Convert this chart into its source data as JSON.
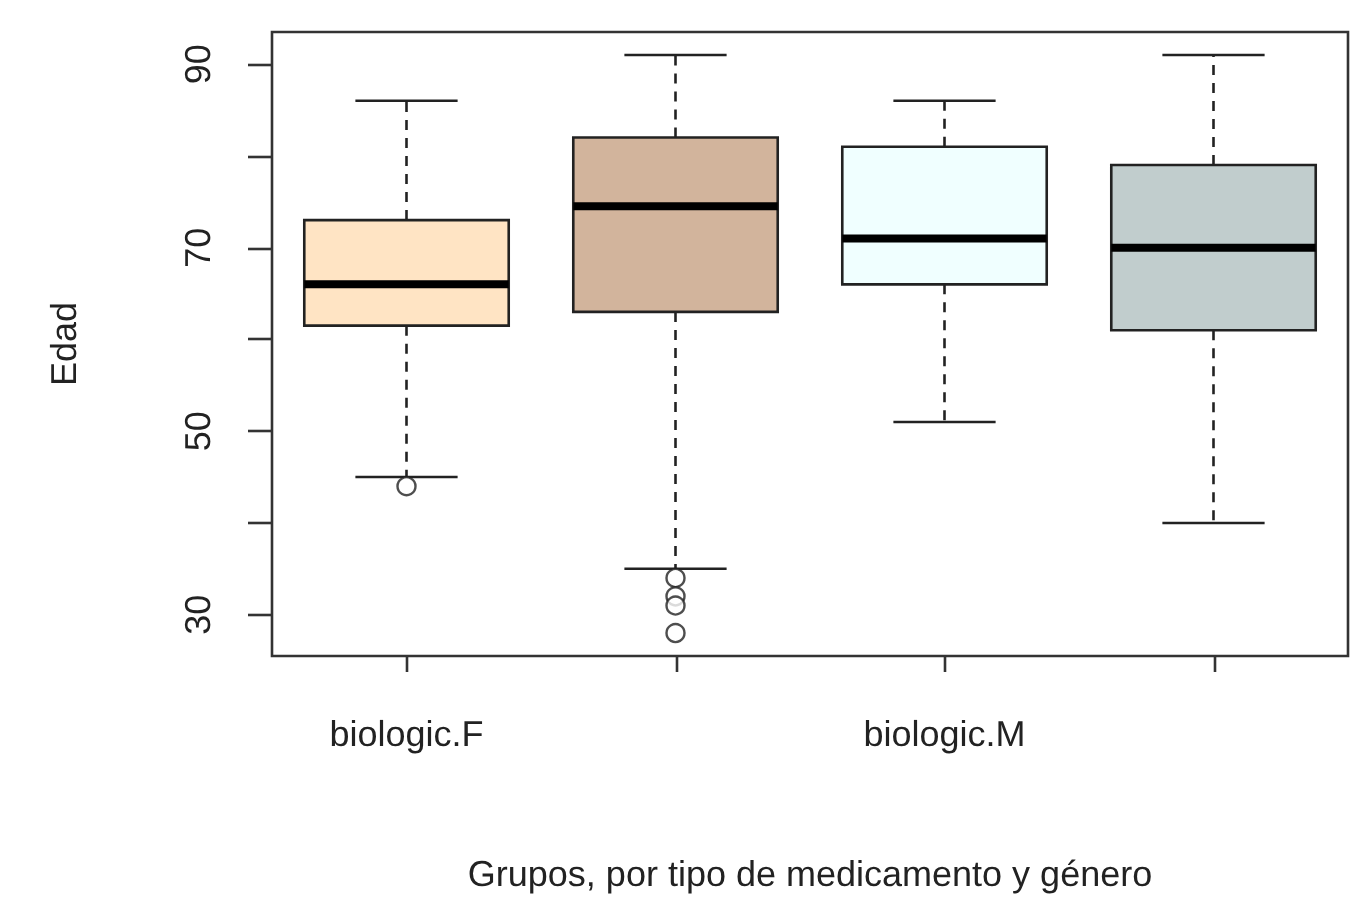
{
  "chart_data": {
    "type": "box",
    "xlabel": "Grupos, por tipo de medicamento y género",
    "ylabel": "Edad",
    "categories": [
      "biologic.F",
      null,
      "biologic.M",
      null
    ],
    "colors": [
      "#ffe4c4",
      "#d2b49c",
      "#f0ffff",
      "#c1cdcd"
    ],
    "boxes": [
      {
        "low": 45,
        "q1": 61.5,
        "median": 66,
        "q3": 73,
        "high": 86,
        "outliers": [
          44
        ]
      },
      {
        "low": 35,
        "q1": 63,
        "median": 74.5,
        "q3": 82,
        "high": 91,
        "outliers": [
          34,
          32,
          31,
          28
        ]
      },
      {
        "low": 51,
        "q1": 66,
        "median": 71,
        "q3": 81,
        "high": 86
      },
      {
        "low": 40,
        "q1": 61,
        "median": 70,
        "q3": 79,
        "high": 91
      }
    ],
    "ylim": [
      25.5,
      93.5
    ],
    "yticks": [
      30,
      {
        "value": 40,
        "label": null
      },
      50,
      {
        "value": 60,
        "label": null
      },
      70,
      {
        "value": 80,
        "label": null
      },
      90
    ],
    "grid": false
  }
}
